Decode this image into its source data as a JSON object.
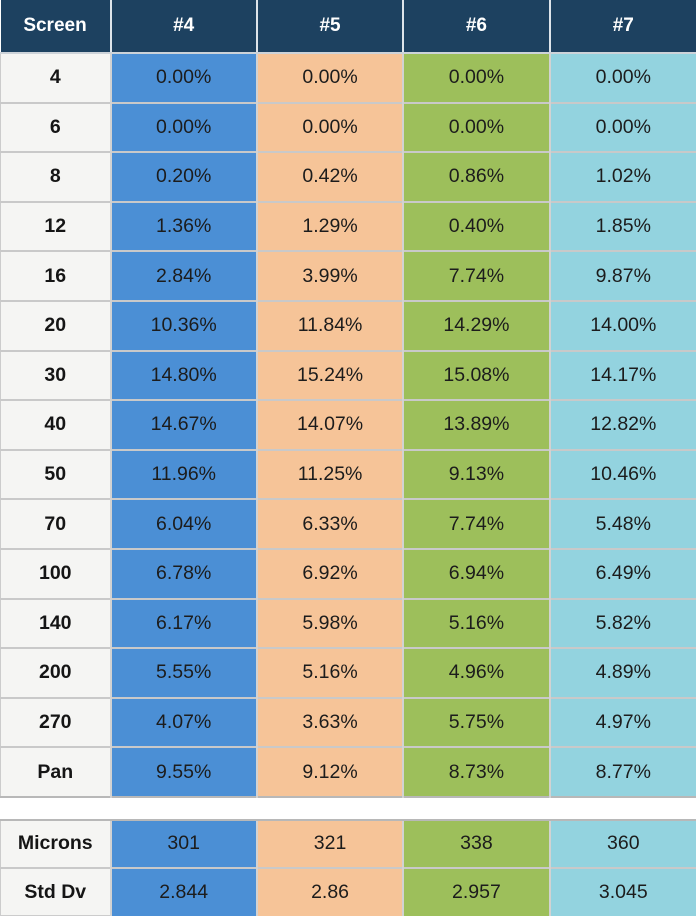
{
  "table": {
    "header_bg": "#1d4160",
    "header_text_color": "#ffffff",
    "columns": [
      "Screen",
      "#4",
      "#5",
      "#6",
      "#7"
    ],
    "column_colors": [
      "#f5f5f3",
      "#4b8fd5",
      "#f6c498",
      "#9dbf5b",
      "#93d3df"
    ],
    "rows": [
      {
        "screen": "4",
        "values": [
          "0.00%",
          "0.00%",
          "0.00%",
          "0.00%"
        ]
      },
      {
        "screen": "6",
        "values": [
          "0.00%",
          "0.00%",
          "0.00%",
          "0.00%"
        ]
      },
      {
        "screen": "8",
        "values": [
          "0.20%",
          "0.42%",
          "0.86%",
          "1.02%"
        ]
      },
      {
        "screen": "12",
        "values": [
          "1.36%",
          "1.29%",
          "0.40%",
          "1.85%"
        ]
      },
      {
        "screen": "16",
        "values": [
          "2.84%",
          "3.99%",
          "7.74%",
          "9.87%"
        ]
      },
      {
        "screen": "20",
        "values": [
          "10.36%",
          "11.84%",
          "14.29%",
          "14.00%"
        ]
      },
      {
        "screen": "30",
        "values": [
          "14.80%",
          "15.24%",
          "15.08%",
          "14.17%"
        ]
      },
      {
        "screen": "40",
        "values": [
          "14.67%",
          "14.07%",
          "13.89%",
          "12.82%"
        ]
      },
      {
        "screen": "50",
        "values": [
          "11.96%",
          "11.25%",
          "9.13%",
          "10.46%"
        ]
      },
      {
        "screen": "70",
        "values": [
          "6.04%",
          "6.33%",
          "7.74%",
          "5.48%"
        ]
      },
      {
        "screen": "100",
        "values": [
          "6.78%",
          "6.92%",
          "6.94%",
          "6.49%"
        ]
      },
      {
        "screen": "140",
        "values": [
          "6.17%",
          "5.98%",
          "5.16%",
          "5.82%"
        ]
      },
      {
        "screen": "200",
        "values": [
          "5.55%",
          "5.16%",
          "4.96%",
          "4.89%"
        ]
      },
      {
        "screen": "270",
        "values": [
          "4.07%",
          "3.63%",
          "5.75%",
          "4.97%"
        ]
      },
      {
        "screen": "Pan",
        "values": [
          "9.55%",
          "9.12%",
          "8.73%",
          "8.77%"
        ]
      }
    ],
    "summary_rows": [
      {
        "screen": "Microns",
        "values": [
          "301",
          "321",
          "338",
          "360"
        ]
      },
      {
        "screen": "Std Dv",
        "values": [
          "2.844",
          "2.86",
          "2.957",
          "3.045"
        ]
      }
    ]
  },
  "chart_data": {
    "type": "table",
    "columns": [
      "Screen",
      "#4",
      "#5",
      "#6",
      "#7"
    ],
    "screens": [
      "4",
      "6",
      "8",
      "12",
      "16",
      "20",
      "30",
      "40",
      "50",
      "70",
      "100",
      "140",
      "200",
      "270",
      "Pan"
    ],
    "percent_retained": {
      "#4": [
        0.0,
        0.0,
        0.2,
        1.36,
        2.84,
        10.36,
        14.8,
        14.67,
        11.96,
        6.04,
        6.78,
        6.17,
        5.55,
        4.07,
        9.55
      ],
      "#5": [
        0.0,
        0.0,
        0.42,
        1.29,
        3.99,
        11.84,
        15.24,
        14.07,
        11.25,
        6.33,
        6.92,
        5.98,
        5.16,
        3.63,
        9.12
      ],
      "#6": [
        0.0,
        0.0,
        0.86,
        0.4,
        7.74,
        14.29,
        15.08,
        13.89,
        9.13,
        7.74,
        6.94,
        5.16,
        4.96,
        5.75,
        8.73
      ],
      "#7": [
        0.0,
        0.0,
        1.02,
        1.85,
        9.87,
        14.0,
        14.17,
        12.82,
        10.46,
        5.48,
        6.49,
        5.82,
        4.89,
        4.97,
        8.77
      ]
    },
    "microns": [
      301,
      321,
      338,
      360
    ],
    "std_dv": [
      2.844,
      2.86,
      2.957,
      3.045
    ]
  }
}
